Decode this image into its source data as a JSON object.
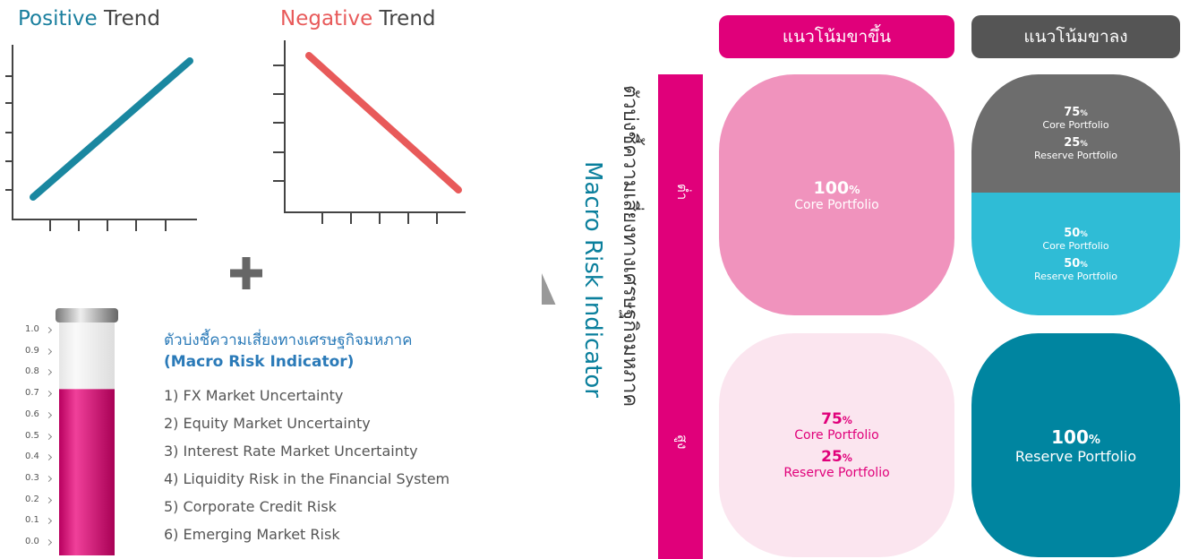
{
  "trend_charts": [
    {
      "title_highlight": "Positive",
      "title_rest": "Trend"
    },
    {
      "title_highlight": "Negative",
      "title_rest": "Trend"
    }
  ],
  "gauge": {
    "ticks": [
      "1.0",
      "0.9",
      "0.8",
      "0.7",
      "0.6",
      "0.5",
      "0.4",
      "0.3",
      "0.2",
      "0.1",
      "0.0"
    ],
    "level": 0.72
  },
  "indicator_list": {
    "title": "ตัวบ่งชี้ความเสี่ยงทางเศรษฐกิจมหภาค",
    "subtitle": "(Macro Risk Indicator)",
    "items": [
      "1) FX Market Uncertainty",
      "2) Equity Market Uncertainty",
      "3) Interest Rate Market Uncertainty",
      "4) Liquidity Risk in the Financial System",
      "5) Corporate Credit Risk",
      "6) Emerging Market Risk"
    ]
  },
  "matrix": {
    "row_title_thai": "ตัวบ่งชี้ความเสี่ยงทางเศรษฐกิจมหภาค",
    "row_title_en": "Macro Risk Indicator",
    "rows": [
      "ต่ำ",
      "สูง"
    ],
    "columns": [
      "แนวโน้มขาขึ้น",
      "แนวโน้มขาลง"
    ],
    "blocks": [
      [
        {
          "number": "100",
          "unit": "%",
          "label": "Core Portfolio"
        }
      ],
      [
        {
          "number": "75",
          "unit": "%",
          "label": "Core Portfolio"
        },
        {
          "number": "25",
          "unit": "%",
          "label": "Reserve Portfolio"
        }
      ],
      [
        {
          "number": "50",
          "unit": "%",
          "label": "Core Portfolio"
        },
        {
          "number": "50",
          "unit": "%",
          "label": "Reserve Portfolio"
        }
      ],
      [
        {
          "number": "75",
          "unit": "%",
          "label": "Core Portfolio"
        },
        {
          "number": "25",
          "unit": "%",
          "label": "Reserve Portfolio"
        }
      ],
      [
        {
          "number": "100",
          "unit": "%",
          "label": "Reserve Portfolio"
        }
      ]
    ]
  }
}
